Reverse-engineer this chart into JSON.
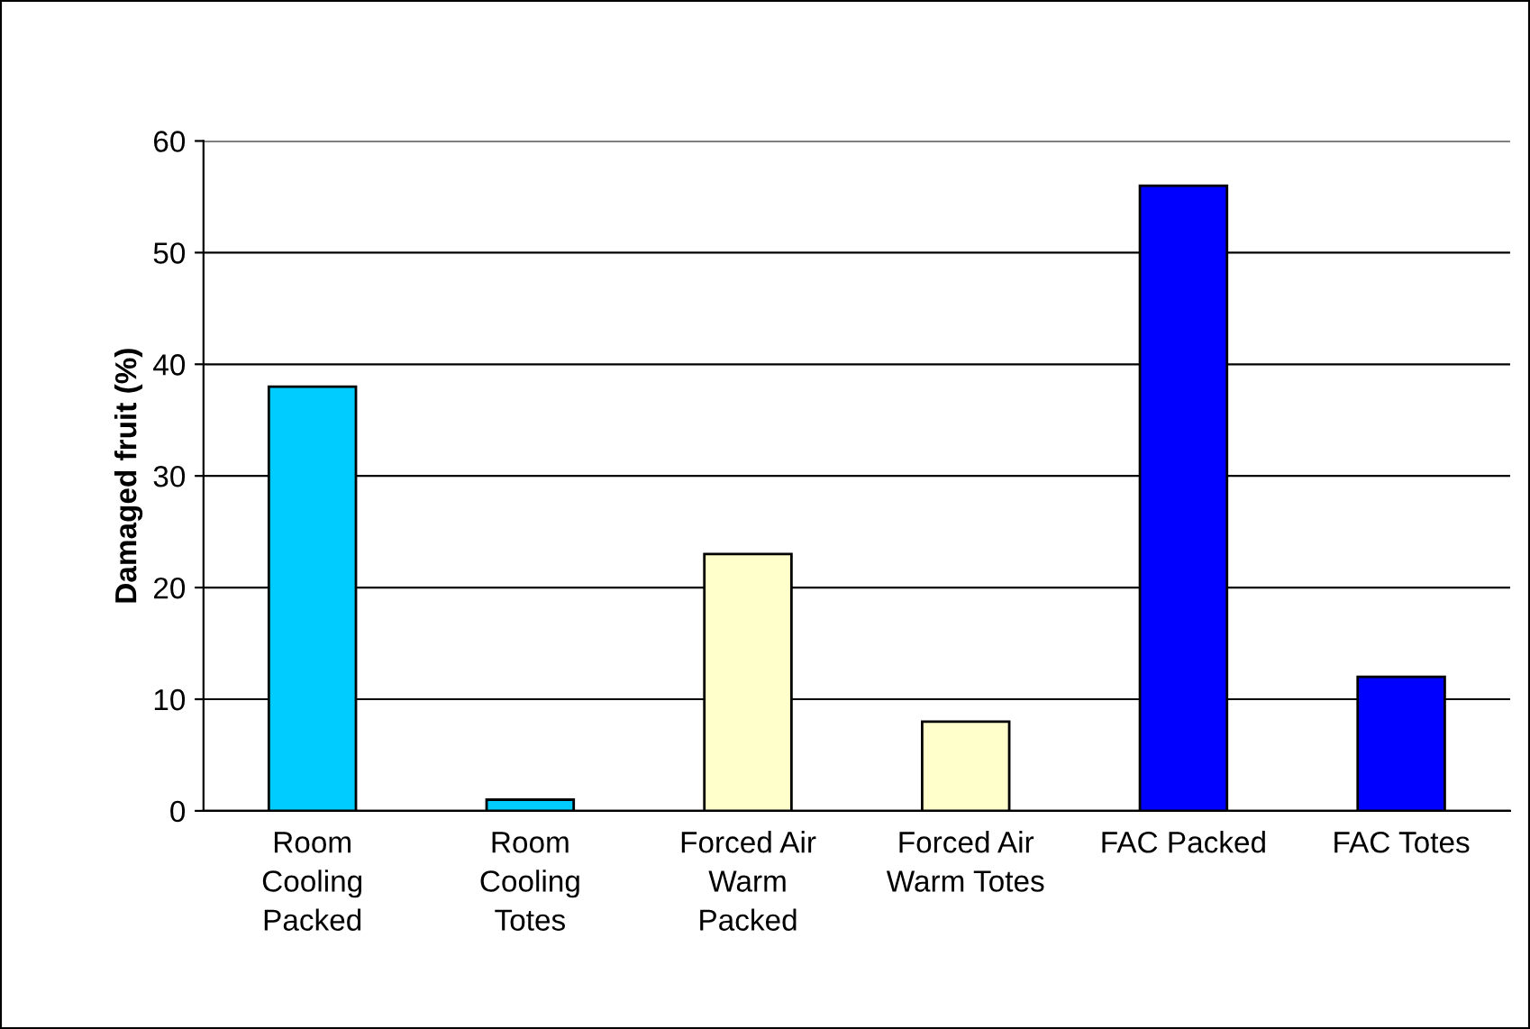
{
  "chart_data": {
    "type": "bar",
    "ylabel": "Damaged fruit (%)",
    "categories": [
      "Room\nCooling\nPacked",
      "Room\nCooling\nTotes",
      "Forced Air\nWarm\nPacked",
      "Forced Air\nWarm Totes",
      "FAC Packed",
      "FAC Totes"
    ],
    "values": [
      38,
      1,
      23,
      8,
      56,
      12
    ],
    "colors": [
      "#00ccff",
      "#00ccff",
      "#ffffcc",
      "#ffffcc",
      "#0000ff",
      "#0000ff"
    ],
    "ylim": [
      0,
      60
    ],
    "yticks": [
      0,
      10,
      20,
      30,
      40,
      50,
      60
    ],
    "grid": "y",
    "legend": false
  }
}
